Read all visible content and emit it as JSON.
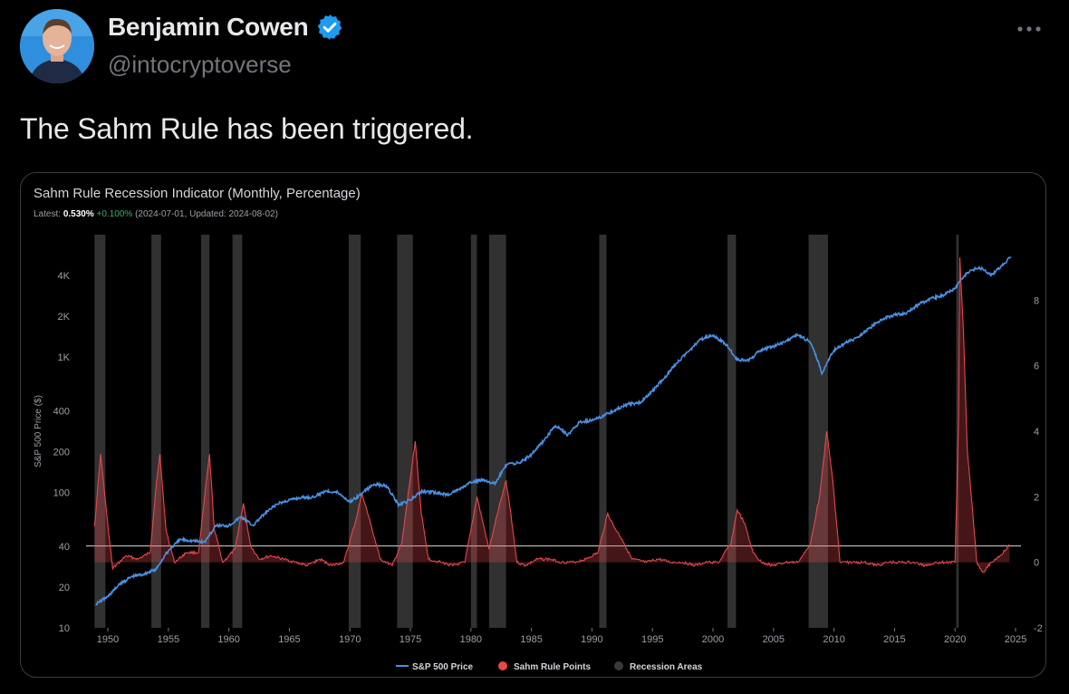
{
  "tweet": {
    "author_name": "Benjamin Cowen",
    "handle": "@intocryptoverse",
    "text": "The Sahm Rule has been triggered.",
    "verified_color": "#1d9bf0"
  },
  "chart_data": {
    "type": "line",
    "title": "Sahm Rule Recession Indicator (Monthly, Percentage)",
    "latest_label": "Latest:",
    "latest_value": "0.530%",
    "latest_change": "+0.100%",
    "latest_detail": "(2024-07-01, Updated: 2024-08-02)",
    "ylabel_left": "S&P 500 Price ($)",
    "left_axis": {
      "scale": "log",
      "range": [
        10,
        8000
      ],
      "ticks": [
        "4K",
        "2K",
        "1K",
        "400",
        "200",
        "100",
        "40",
        "20",
        "10"
      ],
      "tick_values": [
        4000,
        2000,
        1000,
        400,
        200,
        100,
        40,
        20,
        10
      ]
    },
    "right_axis": {
      "range": [
        -2,
        10
      ],
      "ticks": [
        "8",
        "6",
        "4",
        "2",
        "0",
        "-2"
      ],
      "tick_values": [
        8,
        6,
        4,
        2,
        0,
        -2
      ]
    },
    "x_axis": {
      "range": [
        1948.5,
        2025
      ],
      "ticks": [
        "1950",
        "1955",
        "1960",
        "1965",
        "1970",
        "1975",
        "1980",
        "1985",
        "1990",
        "1995",
        "2000",
        "2005",
        "2010",
        "2015",
        "2020",
        "2025"
      ],
      "tick_values": [
        1950,
        1955,
        1960,
        1965,
        1970,
        1975,
        1980,
        1985,
        1990,
        1995,
        2000,
        2005,
        2010,
        2015,
        2020,
        2025
      ]
    },
    "threshold_line": 0.5,
    "recessions": [
      [
        1948.9,
        1949.8
      ],
      [
        1953.6,
        1954.4
      ],
      [
        1957.7,
        1958.4
      ],
      [
        1960.3,
        1961.1
      ],
      [
        1969.9,
        1970.9
      ],
      [
        1973.9,
        1975.2
      ],
      [
        1980.0,
        1980.5
      ],
      [
        1981.5,
        1982.9
      ],
      [
        1990.6,
        1991.2
      ],
      [
        2001.2,
        2001.9
      ],
      [
        2007.9,
        2009.5
      ],
      [
        2020.1,
        2020.3
      ]
    ],
    "series": [
      {
        "name": "S&P 500 Price",
        "axis": "left",
        "color": "#4a90e2",
        "points": [
          [
            1949.0,
            15
          ],
          [
            1950.0,
            17
          ],
          [
            1951.0,
            21
          ],
          [
            1952.0,
            24
          ],
          [
            1953.0,
            25
          ],
          [
            1954.0,
            27
          ],
          [
            1955.0,
            37
          ],
          [
            1956.0,
            45
          ],
          [
            1957.0,
            44
          ],
          [
            1958.0,
            43
          ],
          [
            1959.0,
            57
          ],
          [
            1960.0,
            57
          ],
          [
            1961.0,
            66
          ],
          [
            1962.0,
            57
          ],
          [
            1963.0,
            70
          ],
          [
            1964.0,
            82
          ],
          [
            1965.0,
            88
          ],
          [
            1966.0,
            92
          ],
          [
            1967.0,
            92
          ],
          [
            1968.0,
            103
          ],
          [
            1969.0,
            100
          ],
          [
            1970.0,
            85
          ],
          [
            1971.0,
            98
          ],
          [
            1972.0,
            115
          ],
          [
            1973.0,
            112
          ],
          [
            1974.0,
            80
          ],
          [
            1975.0,
            88
          ],
          [
            1976.0,
            102
          ],
          [
            1977.0,
            100
          ],
          [
            1978.0,
            96
          ],
          [
            1979.0,
            105
          ],
          [
            1980.0,
            118
          ],
          [
            1981.0,
            125
          ],
          [
            1982.0,
            115
          ],
          [
            1983.0,
            162
          ],
          [
            1984.0,
            165
          ],
          [
            1985.0,
            190
          ],
          [
            1986.0,
            240
          ],
          [
            1987.0,
            310
          ],
          [
            1988.0,
            265
          ],
          [
            1989.0,
            330
          ],
          [
            1990.0,
            340
          ],
          [
            1991.0,
            370
          ],
          [
            1992.0,
            410
          ],
          [
            1993.0,
            450
          ],
          [
            1994.0,
            460
          ],
          [
            1995.0,
            560
          ],
          [
            1996.0,
            700
          ],
          [
            1997.0,
            900
          ],
          [
            1998.0,
            1100
          ],
          [
            1999.0,
            1350
          ],
          [
            2000.0,
            1450
          ],
          [
            2001.0,
            1250
          ],
          [
            2002.0,
            950
          ],
          [
            2003.0,
            950
          ],
          [
            2004.0,
            1130
          ],
          [
            2005.0,
            1200
          ],
          [
            2006.0,
            1300
          ],
          [
            2007.0,
            1450
          ],
          [
            2008.0,
            1300
          ],
          [
            2009.0,
            750
          ],
          [
            2010.0,
            1120
          ],
          [
            2011.0,
            1280
          ],
          [
            2012.0,
            1400
          ],
          [
            2013.0,
            1650
          ],
          [
            2014.0,
            1900
          ],
          [
            2015.0,
            2050
          ],
          [
            2016.0,
            2100
          ],
          [
            2017.0,
            2450
          ],
          [
            2018.0,
            2700
          ],
          [
            2019.0,
            2850
          ],
          [
            2020.0,
            3200
          ],
          [
            2021.0,
            4200
          ],
          [
            2022.0,
            4600
          ],
          [
            2023.0,
            4000
          ],
          [
            2024.0,
            4800
          ],
          [
            2024.6,
            5500
          ]
        ]
      },
      {
        "name": "Sahm Rule Points",
        "axis": "right",
        "color": "#e5484d",
        "points": [
          [
            1948.9,
            1.1
          ],
          [
            1949.4,
            3.3
          ],
          [
            1949.9,
            1.5
          ],
          [
            1950.4,
            -0.2
          ],
          [
            1951.5,
            0.2
          ],
          [
            1952.5,
            0.1
          ],
          [
            1953.5,
            0.3
          ],
          [
            1954.0,
            2.4
          ],
          [
            1954.3,
            3.3
          ],
          [
            1954.8,
            1.0
          ],
          [
            1955.5,
            0.0
          ],
          [
            1956.5,
            0.3
          ],
          [
            1957.5,
            0.3
          ],
          [
            1958.0,
            2.0
          ],
          [
            1958.4,
            3.3
          ],
          [
            1958.8,
            1.0
          ],
          [
            1959.5,
            0.0
          ],
          [
            1960.5,
            0.4
          ],
          [
            1961.2,
            1.8
          ],
          [
            1961.8,
            0.5
          ],
          [
            1962.5,
            0.1
          ],
          [
            1963.5,
            0.2
          ],
          [
            1964.5,
            0.1
          ],
          [
            1965.5,
            0.0
          ],
          [
            1966.5,
            -0.1
          ],
          [
            1967.5,
            0.1
          ],
          [
            1968.5,
            -0.1
          ],
          [
            1969.5,
            0.0
          ],
          [
            1970.5,
            1.3
          ],
          [
            1971.0,
            2.1
          ],
          [
            1971.7,
            1.2
          ],
          [
            1972.5,
            0.1
          ],
          [
            1973.5,
            -0.1
          ],
          [
            1974.3,
            0.6
          ],
          [
            1975.0,
            2.6
          ],
          [
            1975.4,
            3.7
          ],
          [
            1975.9,
            1.5
          ],
          [
            1976.5,
            0.1
          ],
          [
            1977.5,
            0.0
          ],
          [
            1978.5,
            -0.1
          ],
          [
            1979.5,
            0.0
          ],
          [
            1980.5,
            2.0
          ],
          [
            1981.0,
            1.2
          ],
          [
            1981.5,
            0.4
          ],
          [
            1982.2,
            1.5
          ],
          [
            1982.9,
            2.5
          ],
          [
            1983.3,
            1.5
          ],
          [
            1983.8,
            0.0
          ],
          [
            1984.5,
            -0.1
          ],
          [
            1985.5,
            0.1
          ],
          [
            1986.5,
            0.1
          ],
          [
            1987.5,
            0.0
          ],
          [
            1988.5,
            0.0
          ],
          [
            1989.5,
            0.1
          ],
          [
            1990.5,
            0.3
          ],
          [
            1991.3,
            1.5
          ],
          [
            1991.8,
            1.1
          ],
          [
            1992.5,
            0.7
          ],
          [
            1993.3,
            0.1
          ],
          [
            1994.5,
            0.0
          ],
          [
            1995.5,
            0.1
          ],
          [
            1996.5,
            0.0
          ],
          [
            1997.5,
            0.0
          ],
          [
            1998.5,
            -0.1
          ],
          [
            1999.5,
            0.0
          ],
          [
            2000.5,
            0.0
          ],
          [
            2001.5,
            0.6
          ],
          [
            2002.0,
            1.6
          ],
          [
            2002.6,
            1.2
          ],
          [
            2003.3,
            0.3
          ],
          [
            2004.0,
            0.0
          ],
          [
            2005.0,
            -0.1
          ],
          [
            2006.0,
            0.0
          ],
          [
            2007.0,
            0.0
          ],
          [
            2008.0,
            0.5
          ],
          [
            2008.8,
            2.0
          ],
          [
            2009.4,
            4.0
          ],
          [
            2009.9,
            2.5
          ],
          [
            2010.5,
            0.0
          ],
          [
            2011.5,
            0.0
          ],
          [
            2012.5,
            0.0
          ],
          [
            2013.5,
            -0.1
          ],
          [
            2014.5,
            0.0
          ],
          [
            2015.5,
            0.0
          ],
          [
            2016.5,
            0.0
          ],
          [
            2017.5,
            -0.1
          ],
          [
            2018.5,
            0.0
          ],
          [
            2019.5,
            0.0
          ],
          [
            2020.0,
            0.0
          ],
          [
            2020.3,
            4.5
          ],
          [
            2020.4,
            9.3
          ],
          [
            2020.7,
            7.0
          ],
          [
            2021.0,
            3.5
          ],
          [
            2021.4,
            1.8
          ],
          [
            2021.8,
            0.0
          ],
          [
            2022.3,
            -0.3
          ],
          [
            2023.0,
            0.0
          ],
          [
            2023.7,
            0.2
          ],
          [
            2024.3,
            0.43
          ],
          [
            2024.5,
            0.53
          ]
        ]
      }
    ],
    "legend": [
      {
        "label": "S&P 500 Price",
        "color": "#4a90e2",
        "marker": "line"
      },
      {
        "label": "Sahm Rule Points",
        "color": "#e5484d",
        "marker": "dot"
      },
      {
        "label": "Recession Areas",
        "color": "#3a3a3a",
        "marker": "dot"
      }
    ]
  }
}
